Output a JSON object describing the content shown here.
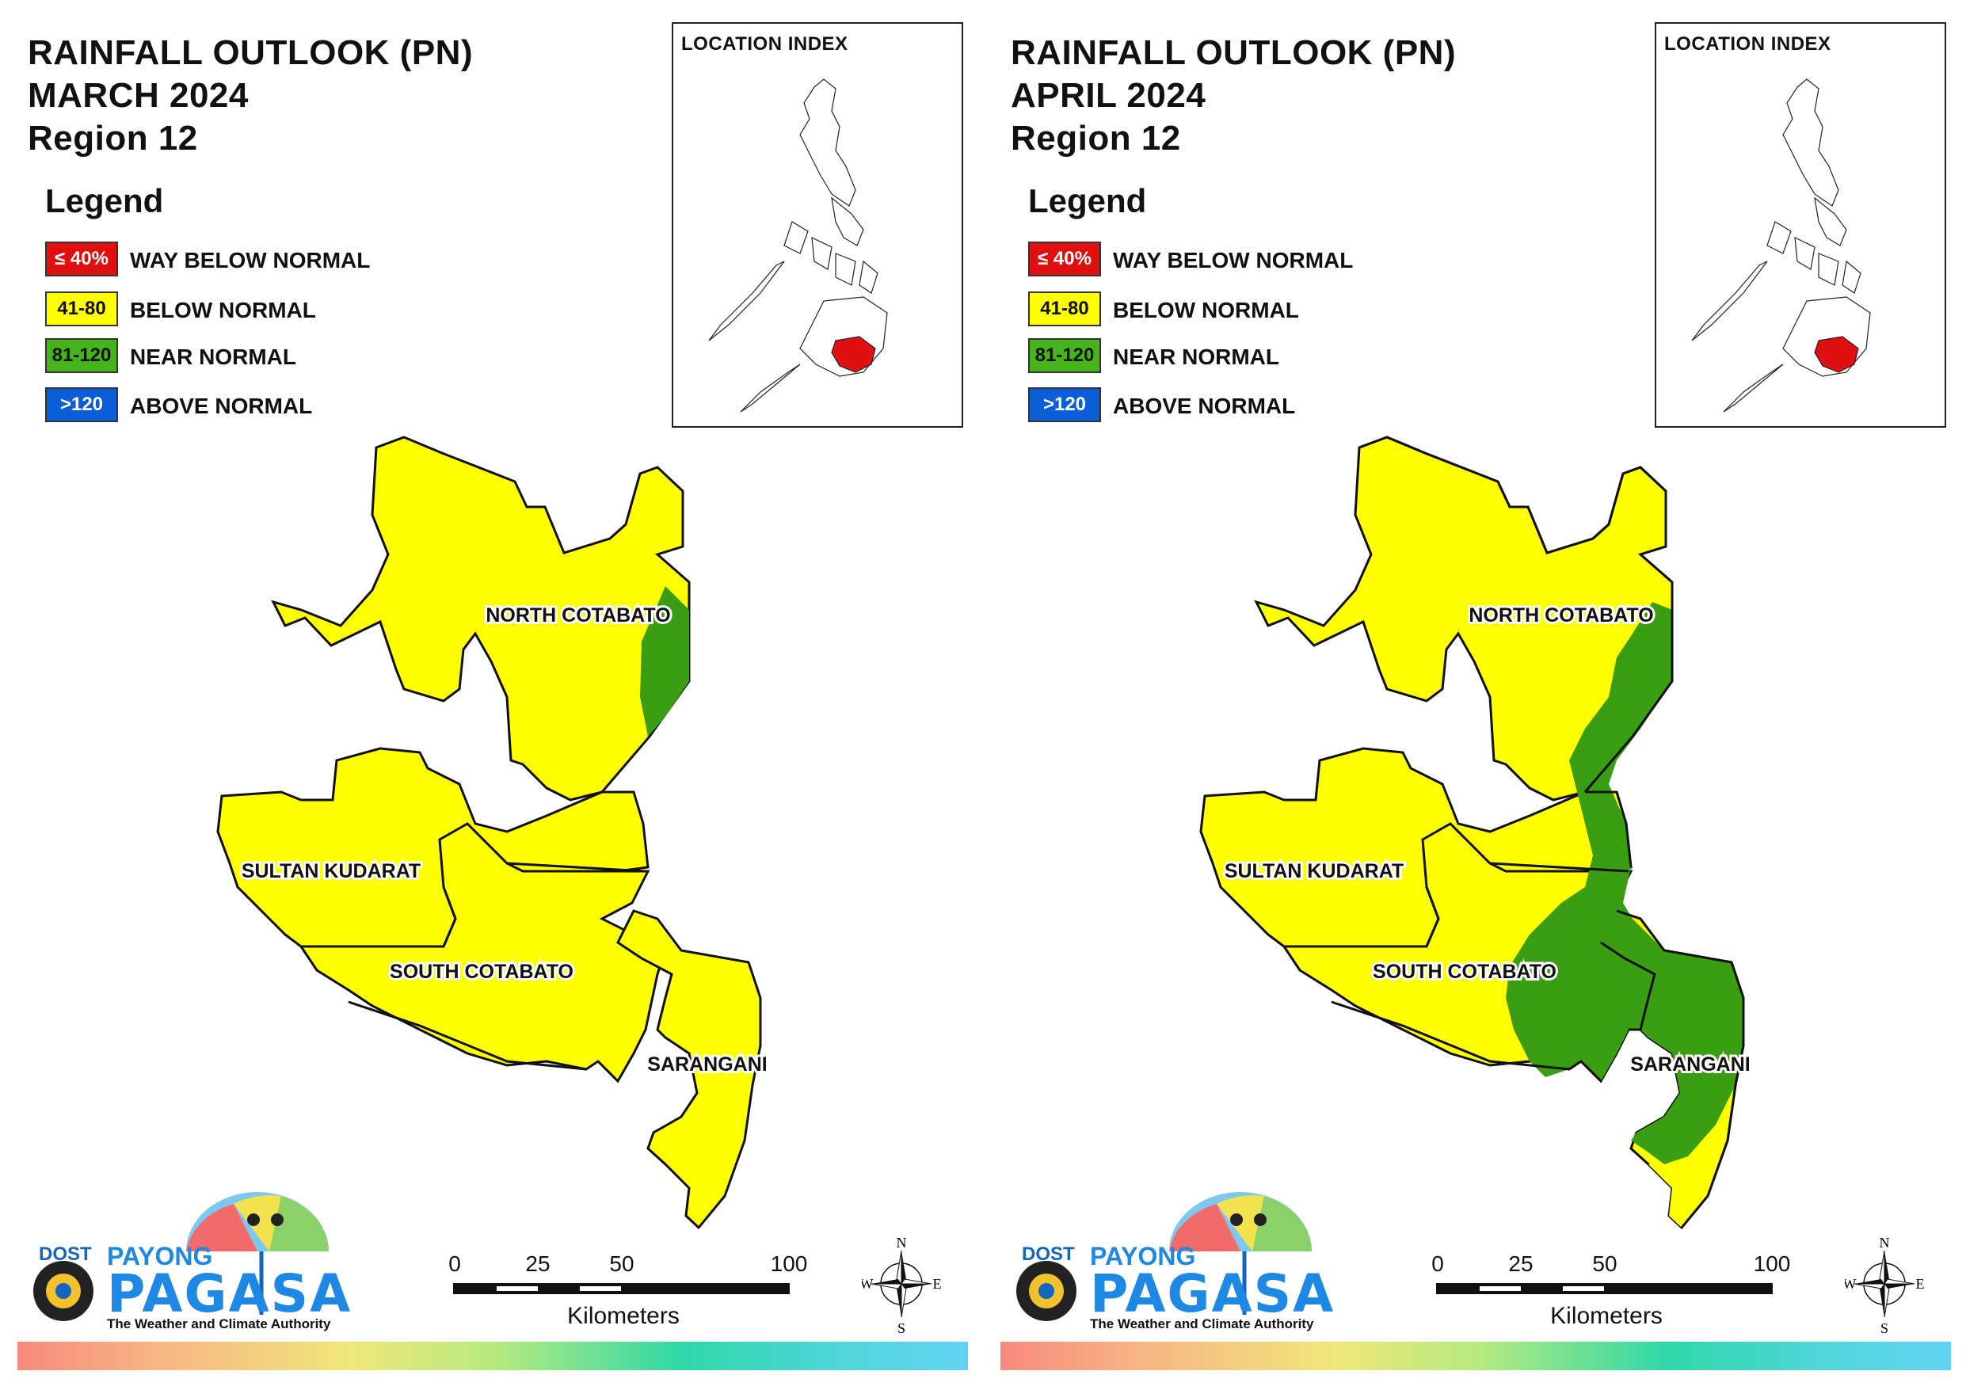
{
  "panels": [
    {
      "title_line1": "RAINFALL OUTLOOK (PN)",
      "title_line2": "MARCH 2024",
      "title_line3": "Region 12",
      "inset_title": "LOCATION INDEX",
      "provinces": {
        "north_cotabato": "NORTH COTABATO",
        "sultan_kudarat": "SULTAN KUDARAT",
        "south_cotabato": "SOUTH COTABATO",
        "sarangani": "SARANGANI"
      },
      "green_extent": "east edge of North Cotabato only"
    },
    {
      "title_line1": "RAINFALL OUTLOOK (PN)",
      "title_line2": "APRIL 2024",
      "title_line3": "Region 12",
      "inset_title": "LOCATION INDEX",
      "provinces": {
        "north_cotabato": "NORTH COTABATO",
        "sultan_kudarat": "SULTAN KUDARAT",
        "south_cotabato": "SOUTH COTABATO",
        "sarangani": "SARANGANI"
      },
      "green_extent": "eastern North Cotabato, eastern South Cotabato and most of Sarangani"
    }
  ],
  "legend": {
    "title": "Legend",
    "items": [
      {
        "code": "≤ 40%",
        "label": "WAY BELOW NORMAL",
        "color": "#e01010",
        "text_color": "#ffffff"
      },
      {
        "code": "41-80",
        "label": "BELOW NORMAL",
        "color": "#ffff00",
        "text_color": "#111111"
      },
      {
        "code": "81-120",
        "label": "NEAR NORMAL",
        "color": "#44b41a",
        "text_color": "#111111"
      },
      {
        "code": ">120",
        "label": "ABOVE NORMAL",
        "color": "#0b5ed7",
        "text_color": "#ffffff"
      }
    ]
  },
  "scale": {
    "ticks": [
      "0",
      "25",
      "50",
      "100"
    ],
    "unit": "Kilometers"
  },
  "compass": {
    "n": "N",
    "s": "S",
    "e": "E",
    "w": "W"
  },
  "logo": {
    "dost": "DOST",
    "payong": "PAYONG",
    "pagasa": "PAGASA",
    "tagline": "The Weather and Climate Authority"
  },
  "colors": {
    "below_normal": "#ffff00",
    "near_normal": "#3a9e12",
    "highlight": "#e01010"
  }
}
